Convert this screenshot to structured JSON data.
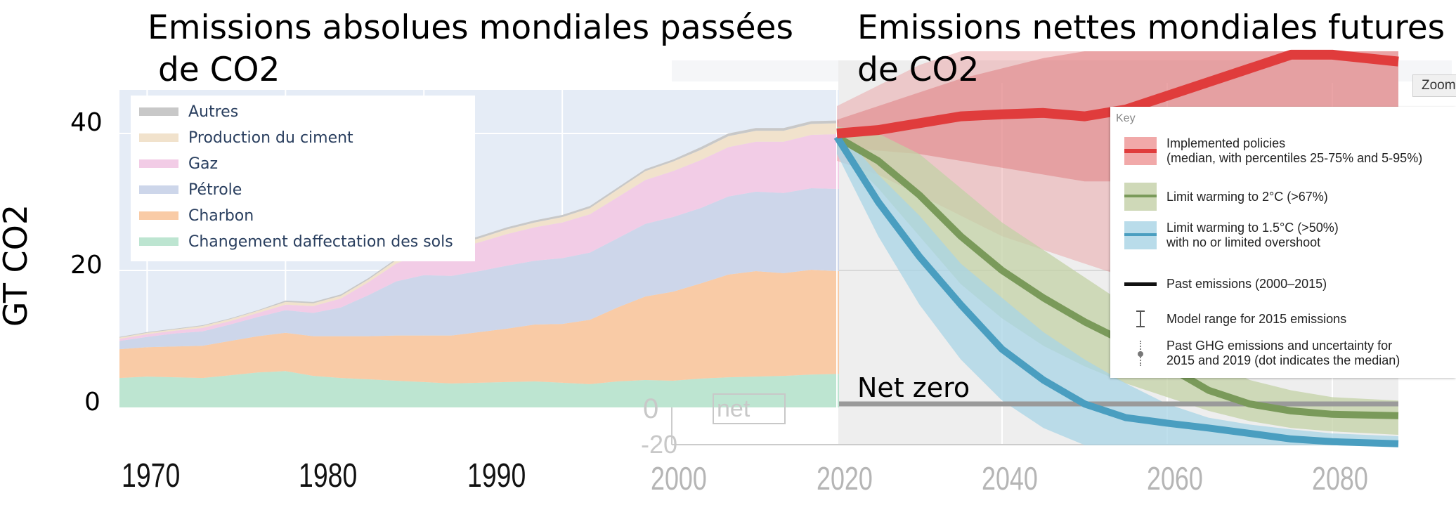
{
  "titles": {
    "left": "Emissions absolues mondiales passées\n de CO2",
    "right": "Emissions nettes mondiales futures\nde CO2"
  },
  "ylabel": "GT CO2",
  "yticks": [
    "0",
    "20",
    "40"
  ],
  "xticks_left": [
    "1970",
    "1980",
    "1990"
  ],
  "xticks_right": [
    "2000",
    "2020",
    "2040",
    "2060",
    "2080"
  ],
  "ghost_ticks": {
    "zero": "0",
    "neg": "-20"
  },
  "net_zero_label": "Net zero",
  "net_zero_ghost": "net zero",
  "zoom_button": "Zoom",
  "legend_left": [
    {
      "label": "Autres",
      "color": "#c8c8c8"
    },
    {
      "label": "Production du ciment",
      "color": "#f1e2cc"
    },
    {
      "label": "Gaz",
      "color": "#f2cce6"
    },
    {
      "label": "Pétrole",
      "color": "#cdd6ea"
    },
    {
      "label": "Charbon",
      "color": "#f9cba6"
    },
    {
      "label": "Changement daffectation des sols",
      "color": "#bde5d1"
    }
  ],
  "key": {
    "title": "Key",
    "items": [
      {
        "label": "Implemented policies\n(median, with percentiles 25-75% and 5-95%)",
        "color": "#e03c3c",
        "band": "#f1a9a9"
      },
      {
        "label": "Limit warming to 2°C (>67%)",
        "color": "#7a9a5a",
        "band": "#cfd9b8"
      },
      {
        "label": "Limit warming to 1.5°C (>50%)\nwith no or limited overshoot",
        "color": "#4a9ec0",
        "band": "#b9dcea"
      },
      {
        "label": "Past emissions (2000–2015)",
        "color": "#111111",
        "band": ""
      },
      {
        "label": "Model range for 2015 emissions",
        "color": "#555555",
        "band": ""
      },
      {
        "label": "Past GHG emissions and uncertainty for\n2015 and 2019 (dot indicates the median)",
        "color": "#888888",
        "band": ""
      }
    ]
  },
  "chart_data": [
    {
      "type": "area",
      "title": "Emissions absolues mondiales passées de CO2",
      "ylabel": "GT CO2",
      "ylim": [
        0,
        45
      ],
      "xlim": [
        1968,
        2020
      ],
      "stacked": true,
      "x": [
        1968,
        1970,
        1972,
        1974,
        1976,
        1978,
        1980,
        1982,
        1984,
        1986,
        1988,
        1990,
        1992,
        1994,
        1996,
        1998,
        2000,
        2002,
        2004,
        2006,
        2008,
        2010,
        2012,
        2014,
        2016,
        2018,
        2020
      ],
      "series": [
        {
          "name": "Changement daffectation des sols",
          "color": "#bde5d1",
          "values": [
            4.3,
            4.5,
            4.4,
            4.3,
            4.7,
            5.1,
            5.3,
            4.6,
            4.3,
            4.1,
            3.9,
            3.7,
            3.5,
            3.6,
            3.7,
            3.8,
            3.6,
            3.4,
            3.8,
            4.0,
            3.9,
            4.2,
            4.4,
            4.5,
            4.6,
            4.8,
            4.9
          ]
        },
        {
          "name": "Charbon",
          "color": "#f9cba6",
          "values": [
            4.2,
            4.3,
            4.5,
            4.7,
            5.0,
            5.3,
            5.6,
            5.8,
            6.1,
            6.3,
            6.6,
            6.8,
            7.0,
            7.4,
            7.8,
            8.3,
            8.6,
            9.4,
            10.8,
            12.2,
            13.0,
            13.9,
            15.0,
            15.4,
            15.0,
            15.3,
            15.0
          ]
        },
        {
          "name": "Pétrole",
          "color": "#cdd6ea",
          "values": [
            1.2,
            1.5,
            1.9,
            2.1,
            2.4,
            2.8,
            3.3,
            3.4,
            4.2,
            6.0,
            7.9,
            8.8,
            8.7,
            8.9,
            9.2,
            9.3,
            9.6,
            9.8,
            10.1,
            10.6,
            10.9,
            11.0,
            11.4,
            11.6,
            11.7,
            11.9,
            12.0
          ]
        },
        {
          "name": "Gaz",
          "color": "#f2cce6",
          "values": [
            0.3,
            0.4,
            0.4,
            0.5,
            0.5,
            0.6,
            0.8,
            1.0,
            1.3,
            1.9,
            2.6,
            3.3,
            3.8,
            4.2,
            4.6,
            4.9,
            5.2,
            5.6,
            6.0,
            6.4,
            6.7,
            7.0,
            7.2,
            7.3,
            7.5,
            7.8,
            8.0
          ]
        },
        {
          "name": "Production du ciment",
          "color": "#f1e2cc",
          "values": [
            0.2,
            0.2,
            0.2,
            0.3,
            0.3,
            0.3,
            0.4,
            0.4,
            0.4,
            0.4,
            0.5,
            0.5,
            0.6,
            0.6,
            0.7,
            0.7,
            0.8,
            0.9,
            1.1,
            1.3,
            1.4,
            1.5,
            1.6,
            1.6,
            1.6,
            1.6,
            1.6
          ]
        },
        {
          "name": "Autres",
          "color": "#c8c8c8",
          "values": [
            0.1,
            0.1,
            0.1,
            0.1,
            0.1,
            0.1,
            0.2,
            0.2,
            0.2,
            0.2,
            0.2,
            0.3,
            0.3,
            0.3,
            0.3,
            0.3,
            0.3,
            0.3,
            0.3,
            0.3,
            0.3,
            0.4,
            0.4,
            0.4,
            0.4,
            0.4,
            0.4
          ]
        }
      ]
    },
    {
      "type": "line",
      "title": "Emissions nettes mondiales futures de CO2",
      "xlim": [
        2000,
        2088
      ],
      "ylim": [
        -5.5,
        45
      ],
      "x": [
        2020,
        2025,
        2030,
        2035,
        2040,
        2045,
        2050,
        2055,
        2060,
        2065,
        2070,
        2075,
        2080,
        2088
      ],
      "series": [
        {
          "name": "Implemented policies",
          "color": "#e03c3c",
          "median": [
            40,
            40.5,
            41.5,
            42.5,
            42.8,
            43,
            42.5,
            43.5,
            45.5,
            47.5,
            49.5,
            51.5,
            51.5,
            50.5
          ],
          "p25": [
            38,
            37.5,
            37,
            36,
            35,
            34,
            33,
            33,
            33,
            33,
            33,
            33,
            32,
            31
          ],
          "p75": [
            42,
            44,
            46,
            48,
            49.5,
            51,
            52,
            53,
            54,
            55,
            56,
            57,
            57,
            57
          ],
          "p5": [
            36,
            34,
            31,
            28,
            25,
            23,
            21,
            19,
            17,
            16,
            15,
            14,
            13,
            12
          ],
          "p95": [
            44,
            47,
            50,
            52,
            54,
            56,
            58,
            60,
            62,
            63,
            64,
            64,
            64,
            64
          ]
        },
        {
          "name": "Limit warming to 2°C (>67%)",
          "color": "#7a9a5a",
          "median": [
            39.5,
            36,
            31,
            25,
            20,
            16,
            12.5,
            9.5,
            6,
            2.5,
            0.5,
            -0.5,
            -1,
            -1.2
          ],
          "low": [
            38,
            32,
            25,
            18,
            13,
            9,
            6,
            3.5,
            1.5,
            -0.5,
            -2,
            -3,
            -3.5,
            -4
          ],
          "high": [
            41,
            40,
            37,
            32,
            27,
            23,
            19,
            15,
            11,
            7,
            4,
            2.5,
            1.5,
            1
          ]
        },
        {
          "name": "Limit warming to 1.5°C (>50%)",
          "color": "#4a9ec0",
          "median": [
            39.5,
            30,
            22,
            15,
            8.5,
            4,
            0.5,
            -1.5,
            -2.3,
            -3,
            -3.8,
            -4.6,
            -5,
            -5.3
          ],
          "low": [
            37,
            25,
            15,
            7,
            1,
            -3,
            -5.5,
            -5.5,
            -5.5,
            -5.5,
            -5.5,
            -5.5,
            -5.5,
            -5.5
          ],
          "high": [
            41,
            34,
            28,
            21,
            16,
            11,
            7,
            3.5,
            0.5,
            -1.5,
            -2.5,
            -3.2,
            -3.8,
            -4.2
          ]
        }
      ]
    }
  ]
}
